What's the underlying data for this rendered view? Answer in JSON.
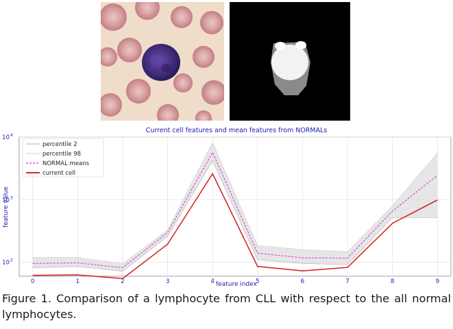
{
  "figure": {
    "caption_line1": "Figure 1. Comparison of a lymphocyte from CLL with respect to the all normal",
    "caption_line2": "lymphocytes."
  },
  "images": {
    "blood_smear": "stained blood smear with lymphocyte",
    "segmentation_mask": "binary segmentation mask"
  },
  "chart_data": {
    "type": "line",
    "title": "Current cell features and mean features from NORMALs",
    "xlabel": "feature index",
    "ylabel": "feature value",
    "yscale": "log",
    "ylim": [
      60,
      10000
    ],
    "xlim": [
      -0.3,
      9.3
    ],
    "x": [
      0,
      1,
      2,
      3,
      4,
      5,
      6,
      7,
      8,
      9
    ],
    "x_tick_labels": [
      "0",
      "1",
      "2",
      "3",
      "4",
      "5",
      "6",
      "7",
      "8",
      "9"
    ],
    "y_ticks": [
      100,
      1000,
      10000
    ],
    "y_tick_labels": [
      "10",
      "10",
      "10"
    ],
    "y_tick_exponents": [
      "2",
      "3",
      "4"
    ],
    "grid": true,
    "legend_position": "top-left",
    "series": [
      {
        "name": "percentile 2",
        "color": "#b0b0b0",
        "values": [
          82,
          86,
          72,
          260,
          4200,
          110,
          96,
          92,
          520,
          520
        ]
      },
      {
        "name": "percentile 98",
        "color": "#d0d0d0",
        "values": [
          120,
          120,
          95,
          330,
          8200,
          185,
          160,
          148,
          800,
          5600
        ]
      },
      {
        "name": "NORMAL means",
        "color": "#cc33cc",
        "values": [
          96,
          98,
          82,
          300,
          5700,
          140,
          118,
          117,
          660,
          2450
        ]
      },
      {
        "name": "current cell",
        "color": "#d62728",
        "values": [
          62,
          63,
          55,
          195,
          2600,
          86,
          73,
          83,
          420,
          990
        ]
      }
    ]
  }
}
